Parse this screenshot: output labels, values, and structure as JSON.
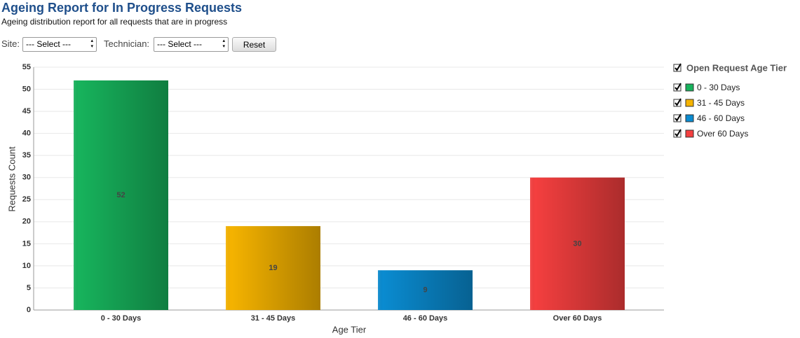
{
  "header": {
    "title": "Ageing Report for In Progress Requests",
    "subtitle": "Ageing distribution report for all requests that are in progress"
  },
  "filters": {
    "site_label": "Site:",
    "site_value": "--- Select ---",
    "technician_label": "Technician:",
    "technician_value": "--- Select ---",
    "reset": "Reset"
  },
  "chart_data": {
    "type": "bar",
    "x_label": "Age Tier",
    "y_label": "Requests Count",
    "legend_title": "Open Request Age Tier",
    "categories": [
      "0 - 30 Days",
      "31 - 45 Days",
      "46 - 60 Days",
      "Over 60 Days"
    ],
    "values": [
      52,
      19,
      9,
      30
    ],
    "colors": [
      "#17b35c",
      "#f5b300",
      "#0a8bd0",
      "#f43f3f"
    ],
    "ylim": [
      0,
      55
    ],
    "yticks": [
      0,
      5,
      10,
      15,
      20,
      25,
      30,
      35,
      40,
      45,
      50,
      55
    ],
    "grid": true
  }
}
